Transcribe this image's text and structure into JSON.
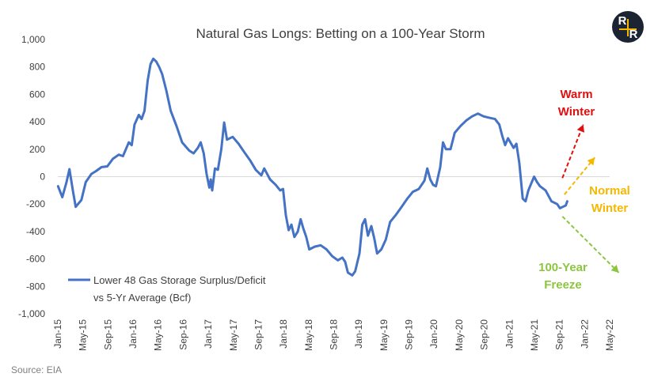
{
  "colors": {
    "series": "#4472c4",
    "warm": "#e01010",
    "normal": "#f5b800",
    "freeze": "#8cc63f",
    "logo_bg": "#1c2333",
    "logo_accent": "#f5b800"
  },
  "logo": {
    "letters": [
      "R",
      "R"
    ]
  },
  "chart_data": {
    "type": "line",
    "title": "Natural Gas Longs: Betting on a 100-Year Storm",
    "source": "Source: EIA",
    "ylim": [
      -1000,
      1000
    ],
    "yticks": [
      1000,
      800,
      600,
      400,
      200,
      0,
      -200,
      -400,
      -600,
      -800,
      -1000
    ],
    "ytick_labels": [
      "1,000",
      "800",
      "600",
      "400",
      "200",
      "0",
      "-200",
      "-400",
      "-600",
      "-800",
      "-1,000"
    ],
    "xlim": [
      "2015-01",
      "2022-05"
    ],
    "xticks": [
      "2015-01",
      "2015-05",
      "2015-09",
      "2016-01",
      "2016-05",
      "2016-09",
      "2017-01",
      "2017-05",
      "2017-09",
      "2018-01",
      "2018-05",
      "2018-09",
      "2019-01",
      "2019-05",
      "2019-09",
      "2020-01",
      "2020-05",
      "2020-09",
      "2021-01",
      "2021-05",
      "2021-09",
      "2022-01",
      "2022-05"
    ],
    "xtick_labels": [
      "Jan-15",
      "May-15",
      "Sep-15",
      "Jan-16",
      "May-16",
      "Sep-16",
      "Jan-17",
      "May-17",
      "Sep-17",
      "Jan-18",
      "May-18",
      "Sep-18",
      "Jan-19",
      "May-19",
      "Sep-19",
      "Jan-20",
      "May-20",
      "Sep-20",
      "Jan-21",
      "May-21",
      "Sep-21",
      "Jan-22",
      "May-22"
    ],
    "grid": false,
    "legend": {
      "position": "bottom-left",
      "line1": "Lower 48 Gas Storage Surplus/Deficit",
      "line2": "vs 5-Yr Average (Bcf)"
    },
    "series": [
      {
        "name": "Lower 48 Gas Storage Surplus/Deficit vs 5-Yr Average (Bcf)",
        "points": [
          [
            "2015-01-02",
            -70
          ],
          [
            "2015-01-23",
            -150
          ],
          [
            "2015-02-13",
            -40
          ],
          [
            "2015-02-27",
            55
          ],
          [
            "2015-03-13",
            -100
          ],
          [
            "2015-03-27",
            -220
          ],
          [
            "2015-04-24",
            -170
          ],
          [
            "2015-05-15",
            -40
          ],
          [
            "2015-06-12",
            20
          ],
          [
            "2015-07-03",
            40
          ],
          [
            "2015-07-31",
            70
          ],
          [
            "2015-08-28",
            75
          ],
          [
            "2015-09-25",
            130
          ],
          [
            "2015-10-23",
            160
          ],
          [
            "2015-11-13",
            150
          ],
          [
            "2015-12-11",
            250
          ],
          [
            "2015-12-25",
            230
          ],
          [
            "2016-01-08",
            380
          ],
          [
            "2016-01-29",
            450
          ],
          [
            "2016-02-12",
            420
          ],
          [
            "2016-02-26",
            480
          ],
          [
            "2016-03-11",
            700
          ],
          [
            "2016-03-25",
            820
          ],
          [
            "2016-04-08",
            860
          ],
          [
            "2016-04-22",
            840
          ],
          [
            "2016-05-06",
            800
          ],
          [
            "2016-05-20",
            750
          ],
          [
            "2016-06-10",
            630
          ],
          [
            "2016-07-01",
            480
          ],
          [
            "2016-07-29",
            370
          ],
          [
            "2016-08-26",
            250
          ],
          [
            "2016-09-30",
            190
          ],
          [
            "2016-10-21",
            170
          ],
          [
            "2016-11-11",
            210
          ],
          [
            "2016-11-25",
            250
          ],
          [
            "2016-12-09",
            170
          ],
          [
            "2016-12-23",
            20
          ],
          [
            "2017-01-06",
            -80
          ],
          [
            "2017-01-13",
            -20
          ],
          [
            "2017-01-20",
            -100
          ],
          [
            "2017-02-03",
            60
          ],
          [
            "2017-02-17",
            50
          ],
          [
            "2017-03-03",
            200
          ],
          [
            "2017-03-17",
            395
          ],
          [
            "2017-03-31",
            270
          ],
          [
            "2017-04-28",
            290
          ],
          [
            "2017-05-26",
            240
          ],
          [
            "2017-06-23",
            180
          ],
          [
            "2017-07-21",
            120
          ],
          [
            "2017-08-18",
            50
          ],
          [
            "2017-09-15",
            10
          ],
          [
            "2017-09-29",
            60
          ],
          [
            "2017-10-27",
            -20
          ],
          [
            "2017-11-24",
            -60
          ],
          [
            "2017-12-15",
            -100
          ],
          [
            "2017-12-29",
            -90
          ],
          [
            "2018-01-12",
            -280
          ],
          [
            "2018-01-26",
            -390
          ],
          [
            "2018-02-09",
            -350
          ],
          [
            "2018-02-23",
            -440
          ],
          [
            "2018-03-09",
            -400
          ],
          [
            "2018-03-23",
            -310
          ],
          [
            "2018-04-06",
            -380
          ],
          [
            "2018-04-20",
            -440
          ],
          [
            "2018-05-04",
            -530
          ],
          [
            "2018-06-01",
            -510
          ],
          [
            "2018-06-29",
            -500
          ],
          [
            "2018-07-27",
            -530
          ],
          [
            "2018-08-24",
            -580
          ],
          [
            "2018-09-21",
            -610
          ],
          [
            "2018-10-12",
            -590
          ],
          [
            "2018-10-26",
            -620
          ],
          [
            "2018-11-09",
            -700
          ],
          [
            "2018-11-30",
            -720
          ],
          [
            "2018-12-14",
            -690
          ],
          [
            "2019-01-04",
            -560
          ],
          [
            "2019-01-18",
            -350
          ],
          [
            "2019-02-01",
            -310
          ],
          [
            "2019-02-15",
            -430
          ],
          [
            "2019-03-01",
            -360
          ],
          [
            "2019-03-15",
            -450
          ],
          [
            "2019-03-29",
            -560
          ],
          [
            "2019-04-19",
            -530
          ],
          [
            "2019-05-10",
            -460
          ],
          [
            "2019-05-31",
            -330
          ],
          [
            "2019-06-28",
            -280
          ],
          [
            "2019-07-26",
            -220
          ],
          [
            "2019-08-23",
            -160
          ],
          [
            "2019-09-20",
            -110
          ],
          [
            "2019-10-18",
            -90
          ],
          [
            "2019-11-15",
            -30
          ],
          [
            "2019-11-29",
            60
          ],
          [
            "2019-12-13",
            -20
          ],
          [
            "2019-12-27",
            -60
          ],
          [
            "2020-01-10",
            -70
          ],
          [
            "2020-01-31",
            70
          ],
          [
            "2020-02-14",
            250
          ],
          [
            "2020-02-28",
            200
          ],
          [
            "2020-03-20",
            200
          ],
          [
            "2020-04-10",
            320
          ],
          [
            "2020-05-08",
            370
          ],
          [
            "2020-06-05",
            410
          ],
          [
            "2020-07-03",
            440
          ],
          [
            "2020-07-31",
            460
          ],
          [
            "2020-08-28",
            440
          ],
          [
            "2020-09-25",
            430
          ],
          [
            "2020-10-23",
            420
          ],
          [
            "2020-11-13",
            380
          ],
          [
            "2020-11-27",
            300
          ],
          [
            "2020-12-11",
            230
          ],
          [
            "2020-12-25",
            280
          ],
          [
            "2021-01-22",
            210
          ],
          [
            "2021-02-05",
            240
          ],
          [
            "2021-02-19",
            100
          ],
          [
            "2021-03-05",
            -160
          ],
          [
            "2021-03-19",
            -180
          ],
          [
            "2021-04-02",
            -100
          ],
          [
            "2021-04-16",
            -50
          ],
          [
            "2021-04-30",
            0
          ],
          [
            "2021-05-14",
            -40
          ],
          [
            "2021-05-28",
            -70
          ],
          [
            "2021-06-25",
            -100
          ],
          [
            "2021-07-23",
            -180
          ],
          [
            "2021-08-20",
            -200
          ],
          [
            "2021-09-03",
            -230
          ],
          [
            "2021-09-17",
            -220
          ],
          [
            "2021-10-01",
            -210
          ],
          [
            "2021-10-08",
            -180
          ]
        ]
      }
    ],
    "annotations": [
      {
        "label_lines": [
          "Warm",
          "Winter"
        ],
        "color_key": "warm",
        "arrow_from": [
          "2021-09-15",
          -10
        ],
        "arrow_to": [
          "2021-12-25",
          380
        ]
      },
      {
        "label_lines": [
          "Normal",
          "Winter"
        ],
        "color_key": "normal",
        "arrow_from": [
          "2021-09-25",
          -130
        ],
        "arrow_to": [
          "2022-02-20",
          140
        ]
      },
      {
        "label_lines": [
          "100-Year",
          "Freeze"
        ],
        "color_key": "freeze",
        "arrow_from": [
          "2021-09-15",
          -290
        ],
        "arrow_to": [
          "2022-06-15",
          -700
        ]
      }
    ]
  }
}
